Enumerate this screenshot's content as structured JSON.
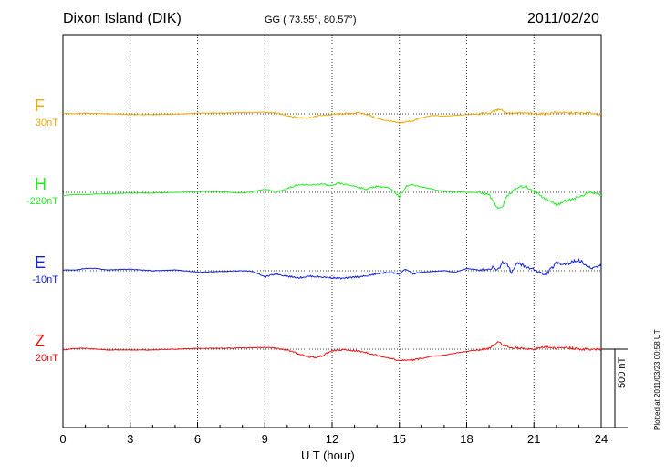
{
  "header": {
    "station": "Dixon Island (DIK)",
    "coords": "GG ( 73.55°,  80.57°)",
    "date": "2011/02/20"
  },
  "footer": {
    "xlabel": "U T (hour)",
    "scale_label": "500 nT",
    "plotted": "Plotted at 2011/03/23 00:58 UT"
  },
  "chart_data": {
    "type": "line",
    "title": "Dixon Island (DIK)",
    "xlabel": "U T (hour)",
    "ylabel": "",
    "xlim": [
      0,
      24
    ],
    "xticks": [
      0,
      3,
      6,
      9,
      12,
      15,
      18,
      21,
      24
    ],
    "scale_bar_nT": 500,
    "grid": true,
    "series": [
      {
        "name": "F",
        "baseline_label": "30nT",
        "color": "#f0a800",
        "x": [
          0,
          0.5,
          1,
          1.5,
          2,
          3,
          4,
          5,
          6,
          7,
          8,
          9,
          9.5,
          10,
          10.5,
          11,
          11.5,
          12,
          12.5,
          13,
          13.3,
          13.6,
          14,
          14.5,
          15,
          15.3,
          15.6,
          16,
          16.5,
          17,
          17.5,
          18,
          18.5,
          19,
          19.3,
          19.5,
          19.7,
          20,
          20.5,
          21,
          21.5,
          22,
          22.5,
          23,
          23.5,
          24
        ],
        "values": [
          5,
          0,
          5,
          2,
          0,
          -5,
          -5,
          -3,
          5,
          5,
          8,
          10,
          5,
          -10,
          -25,
          -25,
          -10,
          -5,
          0,
          5,
          5,
          -5,
          -30,
          -45,
          -60,
          -50,
          -45,
          -25,
          -10,
          -15,
          -10,
          -5,
          0,
          5,
          20,
          35,
          10,
          5,
          5,
          0,
          0,
          10,
          5,
          5,
          5,
          -5
        ]
      },
      {
        "name": "H",
        "baseline_label": "-220nT",
        "color": "#22ee22",
        "x": [
          0,
          0.5,
          1,
          1.5,
          2,
          3,
          4,
          5,
          6,
          7,
          8,
          8.5,
          9,
          9.5,
          10,
          10.5,
          11,
          11.5,
          12,
          12.3,
          12.6,
          13,
          13.5,
          14,
          14.5,
          14.8,
          15,
          15.3,
          15.6,
          16,
          16.5,
          17,
          17.5,
          18,
          18.5,
          19,
          19.2,
          19.4,
          19.6,
          19.8,
          20,
          20.3,
          20.6,
          21,
          21.5,
          22,
          22.5,
          23,
          23.5,
          24
        ],
        "values": [
          -20,
          -15,
          -15,
          -10,
          -10,
          -5,
          -5,
          0,
          5,
          5,
          -5,
          5,
          20,
          0,
          25,
          50,
          45,
          55,
          40,
          60,
          50,
          40,
          20,
          40,
          30,
          0,
          -30,
          40,
          50,
          35,
          20,
          5,
          5,
          0,
          0,
          -15,
          -60,
          -110,
          -90,
          -20,
          0,
          30,
          40,
          10,
          -40,
          -80,
          -50,
          -30,
          0,
          -15
        ]
      },
      {
        "name": "E",
        "baseline_label": "-10nT",
        "color": "#1020e0",
        "x": [
          0,
          0.5,
          1,
          1.5,
          2,
          3,
          4,
          5,
          6,
          7,
          8,
          8.5,
          9,
          9.5,
          10,
          10.5,
          11,
          11.5,
          12,
          12.5,
          13,
          13.5,
          14,
          14.5,
          15,
          15.3,
          15.6,
          16,
          16.5,
          17,
          17.5,
          18,
          18.5,
          19,
          19.2,
          19.4,
          19.6,
          19.8,
          20,
          20.3,
          20.6,
          21,
          21.5,
          22,
          22.5,
          23,
          23.5,
          24
        ],
        "values": [
          5,
          5,
          15,
          15,
          5,
          10,
          0,
          5,
          -10,
          -5,
          0,
          -5,
          -40,
          -20,
          -35,
          -45,
          -35,
          -40,
          -45,
          -50,
          -40,
          -35,
          -20,
          -10,
          -20,
          10,
          -20,
          -10,
          -5,
          0,
          -10,
          15,
          5,
          10,
          25,
          5,
          55,
          50,
          -10,
          55,
          25,
          10,
          -30,
          50,
          45,
          70,
          15,
          35
        ]
      },
      {
        "name": "Z",
        "baseline_label": "20nT",
        "color": "#ee1010",
        "x": [
          0,
          0.5,
          1,
          1.5,
          2,
          3,
          4,
          5,
          6,
          7,
          8,
          9,
          9.5,
          10,
          10.5,
          11,
          11.3,
          11.6,
          12,
          12.5,
          13,
          13.5,
          14,
          14.5,
          15,
          15.3,
          15.6,
          16,
          16.5,
          17,
          17.5,
          18,
          18.5,
          19,
          19.2,
          19.4,
          19.6,
          19.8,
          20,
          20.5,
          21,
          21.5,
          22,
          22.5,
          23,
          23.5,
          24
        ],
        "values": [
          -5,
          5,
          5,
          0,
          -5,
          -5,
          -5,
          0,
          5,
          5,
          8,
          10,
          5,
          -5,
          -30,
          -50,
          -55,
          -40,
          -10,
          -5,
          -10,
          -20,
          -40,
          -55,
          -75,
          -70,
          -70,
          -60,
          -45,
          -40,
          -25,
          -15,
          -5,
          5,
          20,
          55,
          25,
          20,
          10,
          5,
          0,
          15,
          5,
          10,
          0,
          0,
          -5
        ]
      }
    ]
  }
}
